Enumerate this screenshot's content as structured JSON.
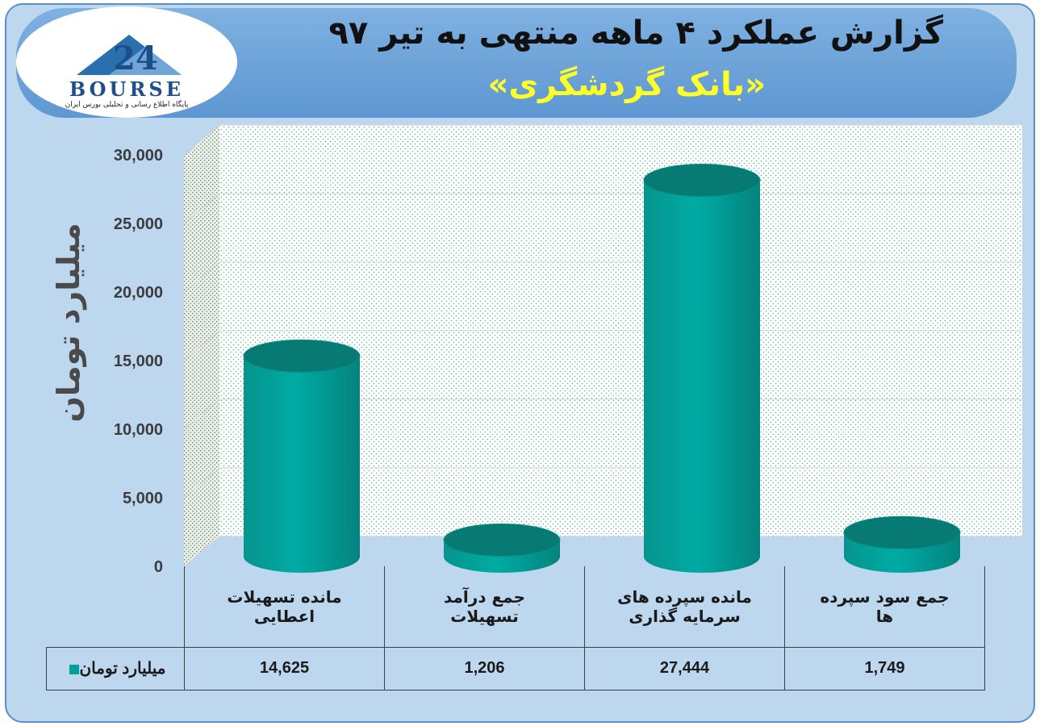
{
  "header": {
    "title_line1": "گزارش عملکرد ۴ ماهه منتهی به تیر ۹۷",
    "title_line2": "«بانک گردشگری»"
  },
  "logo": {
    "name": "BOURSE",
    "number": "24",
    "subtitle": "پایگاه اطلاع رسانی و تحلیلی بورس ایران"
  },
  "colors": {
    "bar": "#00a09a",
    "bar_top": "#067a73",
    "accent": "#ffff2a",
    "panel": "#bcd7ee",
    "header": "#5e97d2"
  },
  "chart_data": {
    "type": "bar",
    "ylabel": "میلیارد تومان",
    "ylim": [
      0,
      30000
    ],
    "yticks": [
      "0",
      "5,000",
      "10,000",
      "15,000",
      "20,000",
      "25,000",
      "30,000"
    ],
    "categories": [
      [
        "مانده تسهیلات",
        "اعطایی"
      ],
      [
        "جمع درآمد",
        "تسهیلات"
      ],
      [
        "مانده سپرده های",
        "سرمایه گذاری"
      ],
      [
        "جمع سود سپرده",
        "ها"
      ]
    ],
    "series": [
      {
        "name": "میلیارد تومان",
        "values": [
          14625,
          1206,
          27444,
          1749
        ],
        "labels": [
          "14,625",
          "1,206",
          "27,444",
          "1,749"
        ]
      }
    ],
    "grid": true,
    "legend": "data-table"
  }
}
